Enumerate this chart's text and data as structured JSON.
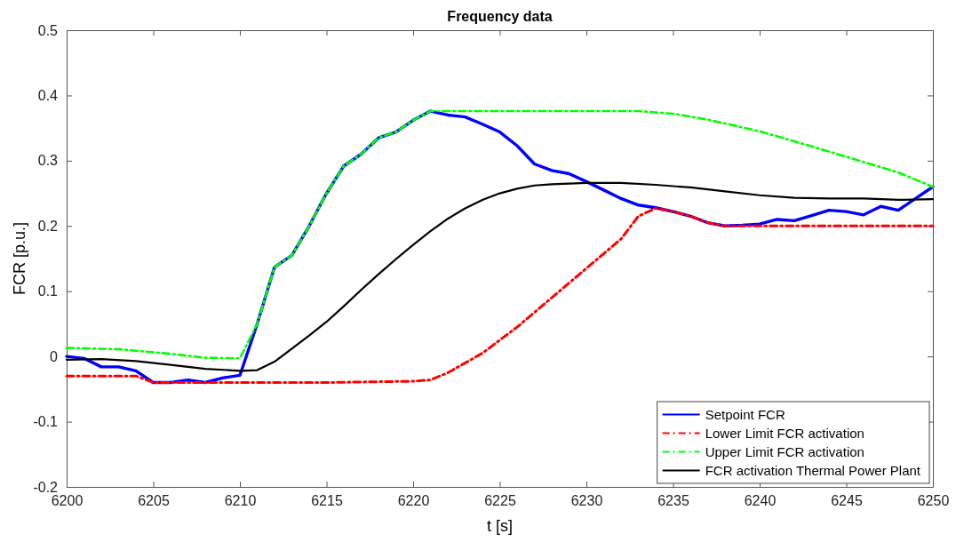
{
  "chart_data": {
    "type": "line",
    "title": "Frequency data",
    "xlabel": "t [s]",
    "ylabel": "FCR [p.u.]",
    "xlim": [
      6200,
      6250
    ],
    "xticks": [
      6200,
      6205,
      6210,
      6215,
      6220,
      6225,
      6230,
      6235,
      6240,
      6245,
      6250
    ],
    "ylim": [
      -0.2,
      0.5
    ],
    "yticks": [
      -0.2,
      -0.1,
      0,
      0.1,
      0.2,
      0.3,
      0.4,
      0.5
    ],
    "grid": false,
    "legend": "bottom right",
    "series": [
      {
        "name": "Setpoint FCR",
        "color": "#0000ff",
        "line_style": "solid",
        "x": [
          6200,
          6201,
          6202,
          6203,
          6204,
          6205,
          6206,
          6207,
          6208,
          6209,
          6210,
          6211,
          6212,
          6213,
          6214,
          6215,
          6216,
          6217,
          6218,
          6219,
          6220,
          6221,
          6222,
          6223,
          6224,
          6225,
          6226,
          6227,
          6228,
          6229,
          6230,
          6231,
          6232,
          6233,
          6234,
          6235,
          6236,
          6237,
          6238,
          6239,
          6240,
          6241,
          6242,
          6243,
          6244,
          6245,
          6246,
          6247,
          6248,
          6249,
          6250
        ],
        "values": [
          0.0,
          -0.003,
          -0.016,
          -0.016,
          -0.022,
          -0.04,
          -0.04,
          -0.036,
          -0.04,
          -0.033,
          -0.029,
          0.05,
          0.137,
          0.155,
          0.2,
          0.25,
          0.292,
          0.31,
          0.335,
          0.344,
          0.362,
          0.376,
          0.37,
          0.367,
          0.356,
          0.344,
          0.323,
          0.295,
          0.285,
          0.28,
          0.268,
          0.255,
          0.242,
          0.232,
          0.228,
          0.222,
          0.215,
          0.205,
          0.2,
          0.201,
          0.203,
          0.21,
          0.208,
          0.216,
          0.224,
          0.222,
          0.217,
          0.23,
          0.224,
          0.242,
          0.26
        ]
      },
      {
        "name": "Lower Limit FCR activation",
        "color": "#ff0000",
        "line_style": "dashed",
        "x": [
          6200,
          6204,
          6205,
          6210,
          6215,
          6220,
          6221,
          6222,
          6224,
          6226,
          6228,
          6230,
          6232,
          6233,
          6234,
          6235,
          6236,
          6237,
          6238,
          6250
        ],
        "values": [
          -0.03,
          -0.03,
          -0.04,
          -0.04,
          -0.04,
          -0.038,
          -0.036,
          -0.025,
          0.005,
          0.045,
          0.09,
          0.135,
          0.18,
          0.215,
          0.227,
          0.222,
          0.215,
          0.205,
          0.2,
          0.2
        ]
      },
      {
        "name": "Upper Limit FCR activation",
        "color": "#00ff00",
        "line_style": "dashed",
        "x": [
          6200,
          6203,
          6206,
          6208,
          6210,
          6211,
          6212,
          6213,
          6214,
          6215,
          6216,
          6217,
          6218,
          6219,
          6220,
          6221,
          6225,
          6230,
          6233,
          6235,
          6237,
          6240,
          6243,
          6246,
          6248,
          6250
        ],
        "values": [
          0.013,
          0.011,
          0.004,
          -0.002,
          -0.003,
          0.05,
          0.137,
          0.155,
          0.2,
          0.25,
          0.292,
          0.31,
          0.335,
          0.344,
          0.362,
          0.376,
          0.376,
          0.376,
          0.376,
          0.372,
          0.363,
          0.345,
          0.322,
          0.298,
          0.282,
          0.26
        ]
      },
      {
        "name": "FCR activation Thermal Power Plant",
        "color": "#000000",
        "line_style": "solid",
        "x": [
          6200,
          6202,
          6204,
          6206,
          6208,
          6210,
          6211,
          6212,
          6213,
          6214,
          6215,
          6216,
          6217,
          6218,
          6219,
          6220,
          6221,
          6222,
          6223,
          6224,
          6225,
          6226,
          6227,
          6228,
          6229,
          6230,
          6232,
          6234,
          6236,
          6238,
          6240,
          6242,
          6244,
          6246,
          6248,
          6250
        ],
        "values": [
          -0.005,
          -0.004,
          -0.007,
          -0.013,
          -0.019,
          -0.022,
          -0.021,
          -0.008,
          0.012,
          0.032,
          0.053,
          0.077,
          0.102,
          0.126,
          0.149,
          0.171,
          0.192,
          0.211,
          0.227,
          0.24,
          0.25,
          0.257,
          0.262,
          0.264,
          0.265,
          0.266,
          0.266,
          0.263,
          0.259,
          0.253,
          0.247,
          0.243,
          0.242,
          0.242,
          0.24,
          0.241
        ]
      }
    ]
  }
}
